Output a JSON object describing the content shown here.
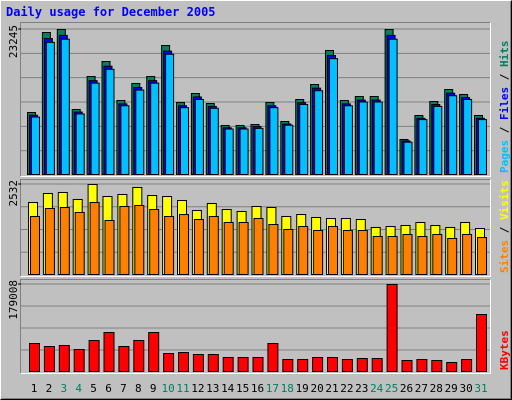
{
  "legend_separator": " / ",
  "chart_data": [
    {
      "type": "bar",
      "title": "Daily usage for December 2005",
      "ylim": [
        0,
        23245
      ],
      "yticks": [
        23245
      ],
      "grid": true,
      "series": [
        {
          "name": "Hits",
          "color": "#00805c",
          "values": [
            10030,
            22767,
            23245,
            10508,
            15762,
            18150,
            11941,
            14648,
            15762,
            20698,
            11623,
            13056,
            11463,
            7961,
            7961,
            8120,
            11623,
            8598,
            12100,
            14488,
            19902,
            11941,
            12578,
            12578,
            23245,
            5732,
            9553,
            11782,
            13692,
            12900,
            9553
          ]
        },
        {
          "name": "Files",
          "color": "#0000ff",
          "values": [
            9600,
            21800,
            22300,
            10100,
            15100,
            17400,
            11400,
            14000,
            15100,
            19800,
            11100,
            12500,
            11000,
            7600,
            7600,
            7800,
            11100,
            8200,
            11600,
            13900,
            19100,
            11400,
            12000,
            12000,
            22300,
            5500,
            9100,
            11300,
            13100,
            12400,
            9100
          ]
        },
        {
          "name": "Pages",
          "color": "#00c0ff",
          "values": [
            9300,
            21200,
            21700,
            9800,
            14700,
            16900,
            11100,
            13600,
            14700,
            19300,
            10800,
            12100,
            10700,
            7400,
            7400,
            7500,
            10800,
            8000,
            11300,
            13500,
            18600,
            11100,
            11700,
            11700,
            21700,
            5300,
            8900,
            11000,
            12700,
            12100,
            8900
          ]
        }
      ]
    },
    {
      "type": "bar",
      "ylim": [
        0,
        2532
      ],
      "yticks": [
        2532
      ],
      "grid": true,
      "series": [
        {
          "name": "Visits",
          "color": "#ffff00",
          "values": [
            2031,
            2282,
            2310,
            2115,
            2532,
            2198,
            2254,
            2449,
            2226,
            2198,
            2087,
            1809,
            2003,
            1836,
            1781,
            1920,
            1892,
            1642,
            1697,
            1614,
            1586,
            1586,
            1558,
            1336,
            1363,
            1391,
            1475,
            1391,
            1336,
            1475,
            1308
          ]
        },
        {
          "name": "Sites",
          "color": "#ff8000",
          "values": [
            1642,
            1864,
            1892,
            1753,
            2031,
            1530,
            1920,
            1948,
            1836,
            1642,
            1697,
            1558,
            1642,
            1475,
            1475,
            1586,
            1419,
            1280,
            1363,
            1252,
            1363,
            1252,
            1252,
            1085,
            1085,
            1141,
            1085,
            1141,
            1030,
            1141,
            1057
          ]
        }
      ]
    },
    {
      "type": "bar",
      "ylim": [
        0,
        179008
      ],
      "yticks": [
        179008
      ],
      "grid": true,
      "categories": [
        "1",
        "2",
        "3",
        "4",
        "5",
        "6",
        "7",
        "8",
        "9",
        "10",
        "11",
        "12",
        "13",
        "14",
        "15",
        "16",
        "17",
        "18",
        "19",
        "20",
        "21",
        "22",
        "23",
        "24",
        "25",
        "26",
        "27",
        "28",
        "29",
        "30",
        "31"
      ],
      "category_colors": [
        "#000000",
        "#000000",
        "#00805c",
        "#00805c",
        "#000000",
        "#000000",
        "#000000",
        "#000000",
        "#000000",
        "#00805c",
        "#00805c",
        "#000000",
        "#000000",
        "#000000",
        "#000000",
        "#000000",
        "#00805c",
        "#00805c",
        "#000000",
        "#000000",
        "#000000",
        "#000000",
        "#000000",
        "#00805c",
        "#00805c",
        "#000000",
        "#000000",
        "#000000",
        "#000000",
        "#000000",
        "#00805c"
      ],
      "series": [
        {
          "name": "KBytes",
          "color": "#ff0000",
          "values": [
            58991,
            52889,
            54923,
            46786,
            65094,
            81367,
            52889,
            65094,
            81367,
            38650,
            40684,
            36615,
            36615,
            30513,
            30513,
            30513,
            58991,
            26444,
            26444,
            30513,
            30513,
            26444,
            28478,
            28478,
            179008,
            24410,
            26444,
            24410,
            20342,
            26444,
            117983
          ]
        }
      ]
    }
  ]
}
